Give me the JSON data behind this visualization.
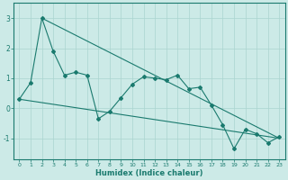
{
  "xlabel": "Humidex (Indice chaleur)",
  "bg_color": "#cceae7",
  "line_color": "#1a7a6e",
  "grid_color": "#aad4d0",
  "ylim": [
    -1.7,
    3.5
  ],
  "xlim": [
    -0.5,
    23.5
  ],
  "yticks": [
    -1,
    0,
    1,
    2,
    3
  ],
  "xticks": [
    0,
    1,
    2,
    3,
    4,
    5,
    6,
    7,
    8,
    9,
    10,
    11,
    12,
    13,
    14,
    15,
    16,
    17,
    18,
    19,
    20,
    21,
    22,
    23
  ],
  "straight_line1_x": [
    0,
    23
  ],
  "straight_line1_y": [
    0.3,
    -1.0
  ],
  "straight_line2_x": [
    2,
    23
  ],
  "straight_line2_y": [
    3.0,
    -1.0
  ],
  "series_x": [
    0,
    1,
    2,
    3,
    4,
    5,
    6,
    7,
    8,
    9,
    10,
    11,
    12,
    13,
    14,
    15,
    16,
    17,
    18,
    19,
    20,
    21,
    22,
    23
  ],
  "series_y": [
    0.3,
    0.85,
    3.0,
    1.9,
    1.1,
    1.2,
    1.1,
    -0.35,
    -0.1,
    0.35,
    0.8,
    1.05,
    1.0,
    0.95,
    1.1,
    0.65,
    0.7,
    0.1,
    -0.55,
    -1.35,
    -0.7,
    -0.85,
    -1.15,
    -0.95
  ]
}
